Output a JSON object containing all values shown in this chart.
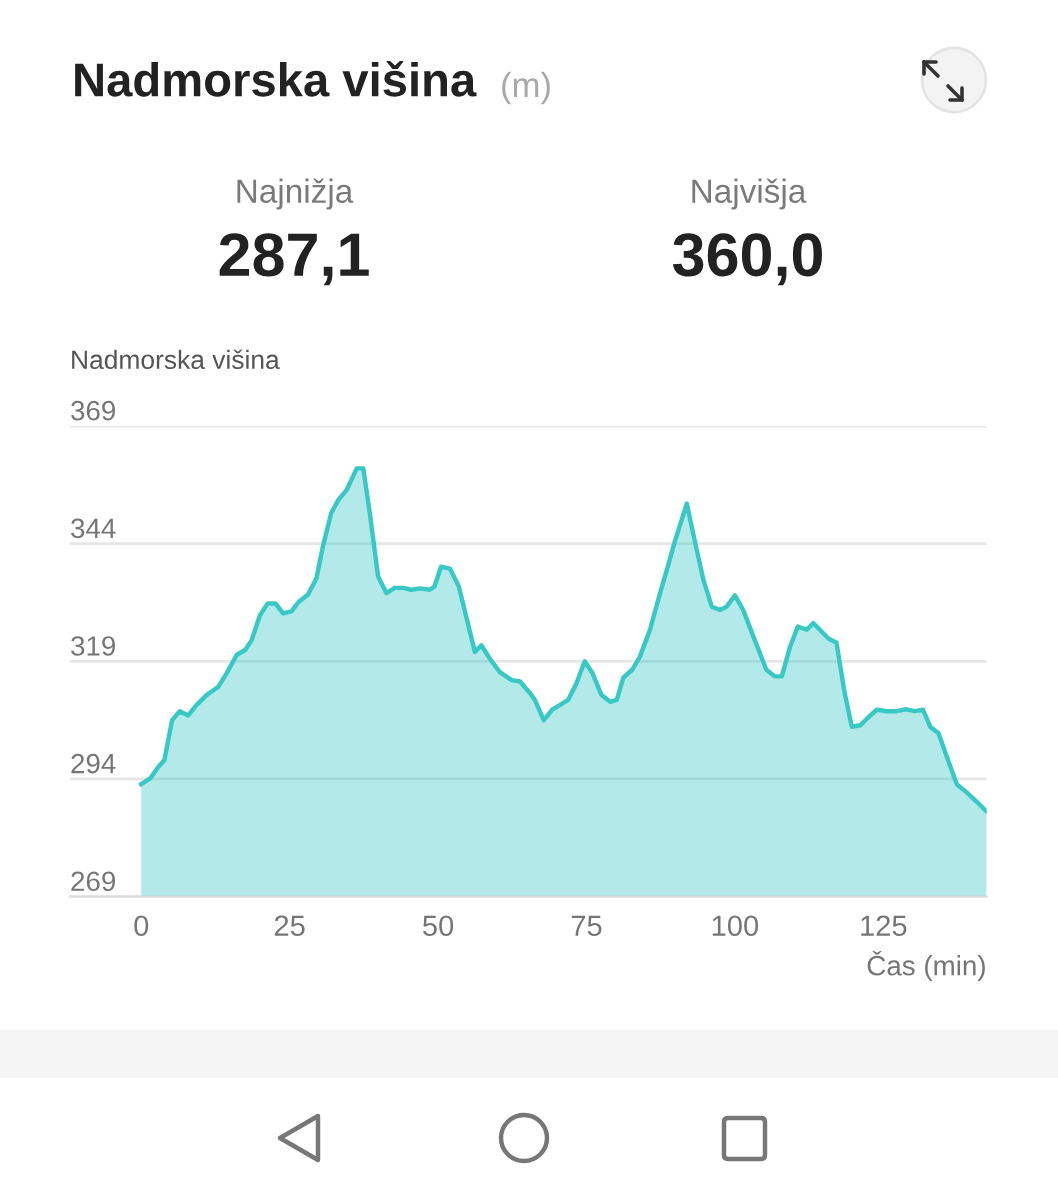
{
  "chart_data": {
    "type": "area",
    "title": "Nadmorska višina",
    "subtitle": "(m)",
    "ylabel": "Nadmorska višina",
    "xlabel": "Čas (min)",
    "annotations": [
      "Najnižja",
      "287,1",
      "Najvišja",
      "360,0"
    ],
    "x": [
      0,
      1.5,
      2.9,
      3.9,
      5.2,
      6.5,
      7.9,
      9.3,
      11.0,
      13.0,
      14.4,
      16.1,
      17.5,
      18.6,
      20.0,
      21.3,
      22.6,
      23.9,
      25.3,
      26.5,
      28.1,
      29.5,
      30.6,
      32.0,
      33.2,
      34.6,
      36.3,
      37.4,
      38.5,
      39.9,
      41.3,
      42.7,
      44.1,
      45.5,
      47.0,
      48.6,
      49.4,
      50.5,
      52.0,
      53.5,
      54.6,
      56.2,
      57.3,
      58.7,
      60.4,
      62.4,
      63.8,
      65.5,
      66.3,
      67.8,
      69.2,
      70.5,
      71.9,
      73.3,
      74.7,
      76.0,
      77.5,
      79.0,
      80.1,
      81.2,
      82.7,
      84.0,
      85.7,
      87.4,
      88.7,
      89.8,
      91.9,
      93.2,
      94.7,
      96.1,
      97.5,
      98.6,
      100.0,
      101.4,
      103.1,
      105.3,
      106.7,
      107.9,
      109.3,
      110.6,
      112.1,
      113.2,
      114.3,
      115.8,
      117.1,
      118.5,
      119.7,
      121.1,
      122.4,
      123.9,
      125.6,
      127.2,
      128.9,
      130.3,
      131.7,
      132.9,
      134.3,
      135.7,
      137.4,
      139.0,
      140.7,
      142.4
    ],
    "series": [
      {
        "color": "#38c9c4",
        "values": [
          292.9,
          294.1,
          296.6,
          298.0,
          306.5,
          308.4,
          307.5,
          309.7,
          311.8,
          313.6,
          316.5,
          320.4,
          321.4,
          323.5,
          328.8,
          331.3,
          331.3,
          329.2,
          329.6,
          331.6,
          333.2,
          336.6,
          343.4,
          350.5,
          353.3,
          355.4,
          360.0,
          360.0,
          350.5,
          337.0,
          333.5,
          334.6,
          334.6,
          334.2,
          334.5,
          334.2,
          334.9,
          339.1,
          338.7,
          334.9,
          329.2,
          321.0,
          322.4,
          319.6,
          316.7,
          315.0,
          314.7,
          312.2,
          310.8,
          306.5,
          308.7,
          309.7,
          310.8,
          314.3,
          319.0,
          316.5,
          311.9,
          310.4,
          310.8,
          315.5,
          317.2,
          320.0,
          325.7,
          333.5,
          339.1,
          344.1,
          352.5,
          344.8,
          336.3,
          330.6,
          329.9,
          330.6,
          333.0,
          329.9,
          324.3,
          317.2,
          315.8,
          315.8,
          322.1,
          326.4,
          325.7,
          327.1,
          325.7,
          323.8,
          323.0,
          312.2,
          305.1,
          305.4,
          307.0,
          308.7,
          308.4,
          308.4,
          308.8,
          308.4,
          308.7,
          305.1,
          303.7,
          298.7,
          292.8,
          291.2,
          289.2,
          287.1
        ]
      }
    ],
    "xlim": [
      -12,
      142.4
    ],
    "ylim": [
      269,
      369
    ],
    "xticks": [
      0,
      25,
      50,
      75,
      100,
      125
    ],
    "yticks": [
      269,
      294,
      319,
      344,
      369
    ],
    "grid": "y",
    "marker": "none",
    "line_style": "solid"
  }
}
